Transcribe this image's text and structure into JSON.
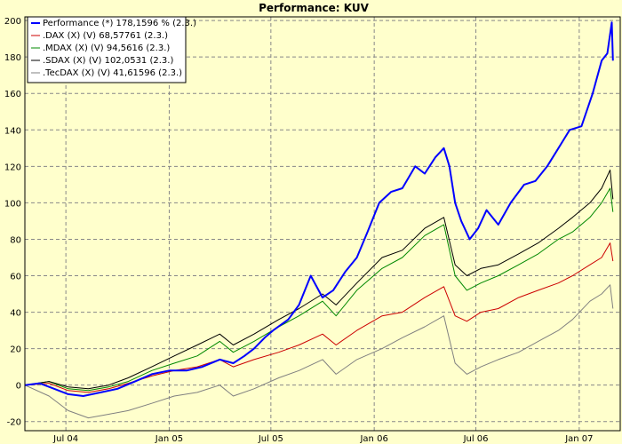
{
  "chart_data": {
    "type": "line",
    "title": "Performance: KUV",
    "xlabel": "",
    "ylabel": "",
    "x_ticks": [
      "Jul 04",
      "Jan 05",
      "Jul 05",
      "Jan 06",
      "Jul 06",
      "Jan 07"
    ],
    "x_tick_dates": [
      "2004-07-01",
      "2005-01-01",
      "2005-07-01",
      "2006-01-01",
      "2006-07-01",
      "2007-01-01"
    ],
    "x_range": [
      "2004-04-19",
      "2007-03-15"
    ],
    "y_ticks": [
      -20,
      0,
      20,
      40,
      60,
      80,
      100,
      120,
      140,
      160,
      180,
      200
    ],
    "ylim": [
      -25,
      202
    ],
    "grid": true,
    "legend_position": "top-left",
    "background": "#ffffcc",
    "series": [
      {
        "name": "Performance (*) 178,1596 % (2.3.)",
        "color": "#0000ff",
        "x": [
          "2004-04-19",
          "2004-05-15",
          "2004-06-10",
          "2004-07-05",
          "2004-08-01",
          "2004-09-01",
          "2004-10-01",
          "2004-11-01",
          "2004-12-01",
          "2005-01-01",
          "2005-02-01",
          "2005-03-01",
          "2005-04-01",
          "2005-04-25",
          "2005-05-15",
          "2005-06-01",
          "2005-06-20",
          "2005-07-05",
          "2005-08-01",
          "2005-08-20",
          "2005-09-10",
          "2005-10-01",
          "2005-10-20",
          "2005-11-10",
          "2005-12-01",
          "2005-12-20",
          "2006-01-10",
          "2006-01-31",
          "2006-02-20",
          "2006-03-15",
          "2006-04-01",
          "2006-04-20",
          "2006-05-05",
          "2006-05-15",
          "2006-05-25",
          "2006-06-05",
          "2006-06-20",
          "2006-07-05",
          "2006-07-20",
          "2006-08-10",
          "2006-09-01",
          "2006-09-25",
          "2006-10-15",
          "2006-11-05",
          "2006-11-25",
          "2006-12-15",
          "2007-01-05",
          "2007-01-25",
          "2007-02-10",
          "2007-02-20",
          "2007-02-28",
          "2007-03-02"
        ],
        "y": [
          0,
          1,
          -2,
          -5,
          -6,
          -4,
          -2,
          2,
          6,
          8,
          8,
          10,
          14,
          12,
          16,
          20,
          26,
          30,
          36,
          44,
          60,
          48,
          52,
          62,
          70,
          84,
          100,
          106,
          108,
          120,
          116,
          125,
          130,
          120,
          100,
          90,
          80,
          86,
          96,
          88,
          100,
          110,
          112,
          120,
          130,
          140,
          142,
          160,
          178,
          182,
          199,
          178
        ]
      },
      {
        "name": ".DAX (X) (V) 68,57761 (2.3.)",
        "color": "#cc0000",
        "x": [
          "2004-04-19",
          "2004-06-01",
          "2004-07-05",
          "2004-08-10",
          "2004-09-15",
          "2004-10-20",
          "2004-12-01",
          "2005-01-10",
          "2005-02-20",
          "2005-04-01",
          "2005-04-25",
          "2005-06-01",
          "2005-07-15",
          "2005-08-20",
          "2005-10-01",
          "2005-10-25",
          "2005-12-01",
          "2006-01-15",
          "2006-02-20",
          "2006-04-01",
          "2006-05-05",
          "2006-05-25",
          "2006-06-15",
          "2006-07-10",
          "2006-08-10",
          "2006-09-15",
          "2006-10-20",
          "2006-11-25",
          "2006-12-20",
          "2007-01-20",
          "2007-02-10",
          "2007-02-25",
          "2007-03-02"
        ],
        "y": [
          0,
          1,
          -3,
          -4,
          -2,
          1,
          5,
          8,
          10,
          14,
          10,
          14,
          18,
          22,
          28,
          22,
          30,
          38,
          40,
          48,
          54,
          38,
          35,
          40,
          42,
          48,
          52,
          56,
          60,
          66,
          70,
          78,
          68
        ]
      },
      {
        "name": ".MDAX (X) (V) 94,5616 (2.3.)",
        "color": "#008800",
        "x": [
          "2004-04-19",
          "2004-06-01",
          "2004-07-05",
          "2004-08-10",
          "2004-09-15",
          "2004-10-20",
          "2004-12-01",
          "2005-01-10",
          "2005-02-20",
          "2005-04-01",
          "2005-04-25",
          "2005-06-01",
          "2005-07-15",
          "2005-08-20",
          "2005-10-01",
          "2005-10-25",
          "2005-12-01",
          "2006-01-15",
          "2006-02-20",
          "2006-04-01",
          "2006-05-05",
          "2006-05-25",
          "2006-06-15",
          "2006-07-10",
          "2006-08-10",
          "2006-09-15",
          "2006-10-20",
          "2006-11-25",
          "2006-12-20",
          "2007-01-20",
          "2007-02-10",
          "2007-02-25",
          "2007-03-02"
        ],
        "y": [
          0,
          2,
          -2,
          -3,
          -1,
          2,
          8,
          12,
          16,
          24,
          18,
          24,
          32,
          38,
          46,
          38,
          52,
          64,
          70,
          82,
          88,
          60,
          52,
          56,
          60,
          66,
          72,
          80,
          84,
          92,
          100,
          108,
          95
        ]
      },
      {
        "name": ".SDAX (X) (V) 102,0531 (2.3.)",
        "color": "#000000",
        "x": [
          "2004-04-19",
          "2004-06-01",
          "2004-07-05",
          "2004-08-10",
          "2004-09-15",
          "2004-10-20",
          "2004-12-01",
          "2005-01-10",
          "2005-02-20",
          "2005-04-01",
          "2005-04-25",
          "2005-06-01",
          "2005-07-15",
          "2005-08-20",
          "2005-10-01",
          "2005-10-25",
          "2005-12-01",
          "2006-01-15",
          "2006-02-20",
          "2006-04-01",
          "2006-05-05",
          "2006-05-25",
          "2006-06-15",
          "2006-07-10",
          "2006-08-10",
          "2006-09-15",
          "2006-10-20",
          "2006-11-25",
          "2006-12-20",
          "2007-01-20",
          "2007-02-10",
          "2007-02-25",
          "2007-03-02"
        ],
        "y": [
          0,
          2,
          -1,
          -2,
          0,
          4,
          10,
          16,
          22,
          28,
          22,
          28,
          36,
          42,
          50,
          44,
          56,
          70,
          74,
          86,
          92,
          66,
          60,
          64,
          66,
          72,
          78,
          86,
          92,
          100,
          108,
          118,
          102
        ]
      },
      {
        "name": ".TecDAX (X) (V) 41,61596 (2.3.)",
        "color": "#808080",
        "x": [
          "2004-04-19",
          "2004-06-01",
          "2004-07-05",
          "2004-08-10",
          "2004-09-15",
          "2004-10-20",
          "2004-12-01",
          "2005-01-10",
          "2005-02-20",
          "2005-04-01",
          "2005-04-25",
          "2005-06-01",
          "2005-07-15",
          "2005-08-20",
          "2005-10-01",
          "2005-10-25",
          "2005-12-01",
          "2006-01-15",
          "2006-02-20",
          "2006-04-01",
          "2006-05-05",
          "2006-05-25",
          "2006-06-15",
          "2006-07-10",
          "2006-08-10",
          "2006-09-15",
          "2006-10-20",
          "2006-11-25",
          "2006-12-20",
          "2007-01-20",
          "2007-02-10",
          "2007-02-25",
          "2007-03-02"
        ],
        "y": [
          0,
          -6,
          -14,
          -18,
          -16,
          -14,
          -10,
          -6,
          -4,
          0,
          -6,
          -2,
          4,
          8,
          14,
          6,
          14,
          20,
          26,
          32,
          38,
          12,
          6,
          10,
          14,
          18,
          24,
          30,
          36,
          46,
          50,
          55,
          42
        ]
      }
    ]
  }
}
